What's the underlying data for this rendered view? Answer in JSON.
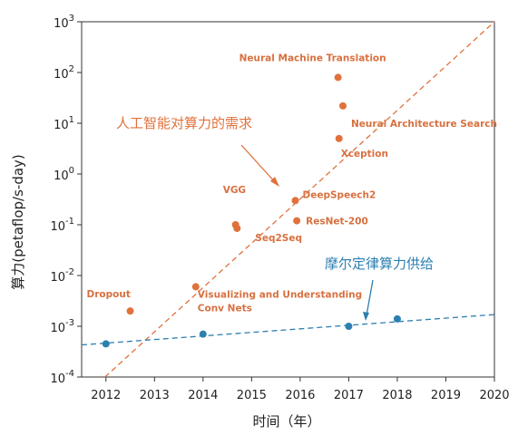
{
  "chart_data": {
    "type": "scatter",
    "xlabel": "时间（年）",
    "ylabel": "算力(petaflop/s-day)",
    "xlim": [
      2011.5,
      2020
    ],
    "ylim": [
      0.0001,
      1000
    ],
    "yscale": "log",
    "grid": false,
    "x_ticks": [
      "2012",
      "2013",
      "2014",
      "2015",
      "2016",
      "2017",
      "2018",
      "2019",
      "2020"
    ],
    "y_ticks": [
      {
        "base": "10",
        "exp": "3",
        "value": 1000
      },
      {
        "base": "10",
        "exp": "2",
        "value": 100
      },
      {
        "base": "10",
        "exp": "1",
        "value": 10
      },
      {
        "base": "10",
        "exp": "0",
        "value": 1
      },
      {
        "base": "10",
        "exp": "-1",
        "value": 0.1
      },
      {
        "base": "10",
        "exp": "-2",
        "value": 0.01
      },
      {
        "base": "10",
        "exp": "-3",
        "value": 0.001
      },
      {
        "base": "10",
        "exp": "-4",
        "value": 0.0001
      }
    ],
    "series": [
      {
        "color": "#e0713b",
        "points": [
          {
            "x": 2012.5,
            "y": 0.002,
            "label": "Dropout"
          },
          {
            "x": 2013.85,
            "y": 0.006,
            "label": "Visualizing and Understanding Conv Nets"
          },
          {
            "x": 2014.67,
            "y": 0.1,
            "label": "VGG"
          },
          {
            "x": 2014.7,
            "y": 0.085,
            "label": "Seq2Seq"
          },
          {
            "x": 2015.9,
            "y": 0.3,
            "label": "DeepSpeech2"
          },
          {
            "x": 2015.93,
            "y": 0.12,
            "label": "ResNet-200"
          },
          {
            "x": 2016.8,
            "y": 5,
            "label": "Xception"
          },
          {
            "x": 2016.88,
            "y": 22,
            "label": "Neural Architecture Search"
          },
          {
            "x": 2016.78,
            "y": 80,
            "label": "Neural Machine Translation"
          }
        ],
        "trend": {
          "x": [
            2011.98,
            2020
          ],
          "y": [
            0.0001,
            1000
          ]
        },
        "annotation": "人工智能对算力的需求"
      },
      {
        "color": "#2c7fb0",
        "points": [
          {
            "x": 2012,
            "y": 0.00045
          },
          {
            "x": 2014,
            "y": 0.0007
          },
          {
            "x": 2017,
            "y": 0.001
          },
          {
            "x": 2018,
            "y": 0.0014
          }
        ],
        "trend": {
          "x": [
            2011.5,
            2020
          ],
          "y": [
            0.00043,
            0.0017
          ]
        },
        "annotation": "摩尔定律算力供给"
      }
    ]
  }
}
